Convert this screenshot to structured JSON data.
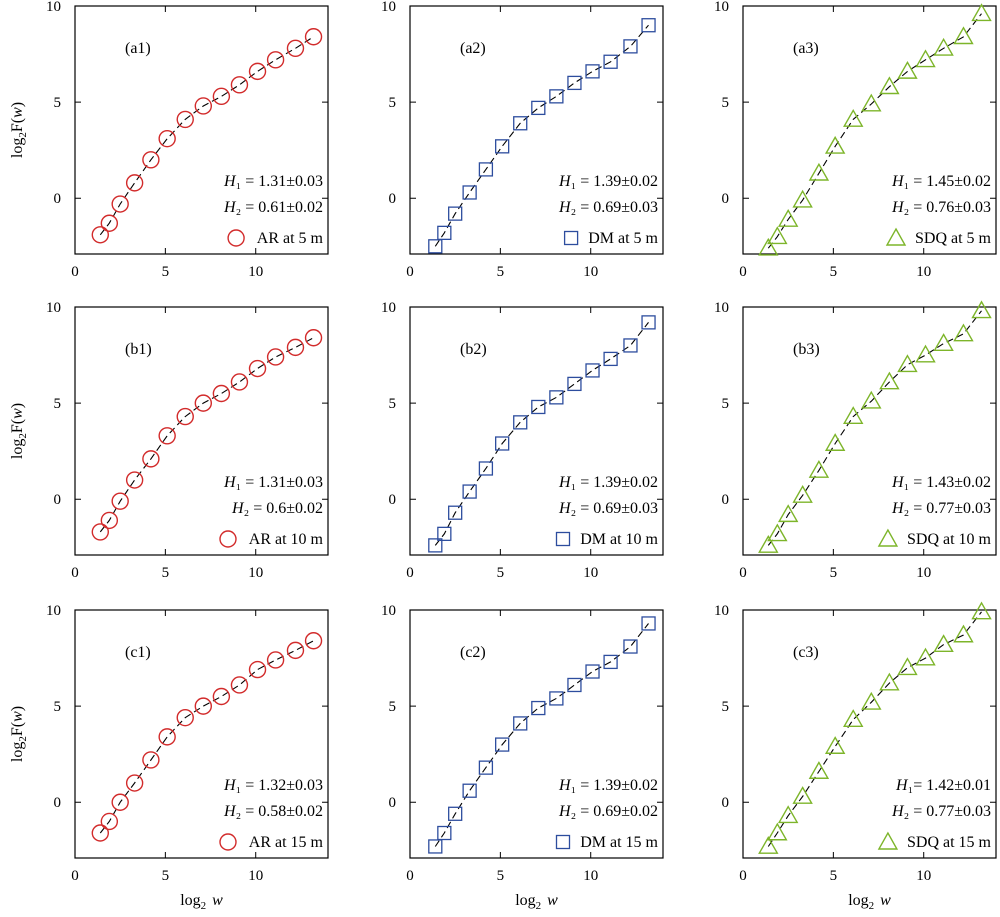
{
  "figure": {
    "xlabel": "log₂w",
    "ylabel": "log₂F(w)",
    "x_ticks": [
      0,
      5,
      10
    ],
    "y_ticks": [
      10,
      5,
      0
    ],
    "colors": {
      "AR": "#d22b2b",
      "DM": "#2d4d9e",
      "SDQ": "#7db52a",
      "fit": "#000000"
    },
    "marker_x": [
      1.4,
      1.9,
      2.5,
      3.3,
      4.2,
      5.1,
      6.1,
      7.1,
      8.1,
      9.1,
      10.1,
      11.1,
      12.2,
      13.2
    ]
  },
  "chart_data": [
    {
      "type": "scatter",
      "panel": "(a1)",
      "series": [
        {
          "name": "AR at 5 m",
          "marker": "circle",
          "values": [
            -1.9,
            -1.3,
            -0.3,
            0.8,
            2.0,
            3.1,
            4.1,
            4.8,
            5.3,
            5.9,
            6.6,
            7.2,
            7.8,
            8.4
          ]
        }
      ],
      "H1": "H₁ = 1.31±0.03",
      "H2": "H₂ = 0.61±0.02",
      "legend": "AR at 5 m",
      "xlim": [
        0,
        14
      ],
      "ylim": [
        -2.9,
        10
      ]
    },
    {
      "type": "scatter",
      "panel": "(a2)",
      "series": [
        {
          "name": "DM at 5 m",
          "marker": "square",
          "values": [
            -2.5,
            -1.8,
            -0.8,
            0.3,
            1.5,
            2.7,
            3.9,
            4.7,
            5.3,
            6.0,
            6.6,
            7.1,
            7.9,
            9.0
          ]
        }
      ],
      "H1": "H₁ = 1.39±0.02",
      "H2": "H₂ = 0.69±0.03",
      "legend": "DM at 5 m",
      "xlim": [
        0,
        14
      ],
      "ylim": [
        -2.9,
        10
      ]
    },
    {
      "type": "scatter",
      "panel": "(a3)",
      "series": [
        {
          "name": "SDQ at 5 m",
          "marker": "triangle",
          "values": [
            -2.6,
            -2.0,
            -1.1,
            -0.1,
            1.3,
            2.7,
            4.1,
            4.9,
            5.8,
            6.6,
            7.2,
            7.8,
            8.4,
            9.6
          ]
        }
      ],
      "H1": "H₁ = 1.45±0.02",
      "H2": "H₂ = 0.76±0.03",
      "legend": "SDQ at 5 m",
      "xlim": [
        0,
        14
      ],
      "ylim": [
        -2.9,
        10
      ]
    },
    {
      "type": "scatter",
      "panel": "(b1)",
      "series": [
        {
          "name": "AR at 10 m",
          "marker": "circle",
          "values": [
            -1.7,
            -1.1,
            -0.1,
            1.0,
            2.1,
            3.3,
            4.3,
            5.0,
            5.5,
            6.1,
            6.8,
            7.4,
            7.9,
            8.4
          ]
        }
      ],
      "H1": "H₁ = 1.31±0.03",
      "H2": "H₂ = 0.6±0.02",
      "legend": "AR at 10 m",
      "xlim": [
        0,
        14
      ],
      "ylim": [
        -2.9,
        10
      ]
    },
    {
      "type": "scatter",
      "panel": "(b2)",
      "series": [
        {
          "name": "DM at 10 m",
          "marker": "square",
          "values": [
            -2.4,
            -1.8,
            -0.7,
            0.4,
            1.6,
            2.9,
            4.0,
            4.8,
            5.3,
            6.0,
            6.7,
            7.3,
            8.0,
            9.2
          ]
        }
      ],
      "H1": "H₁ = 1.39±0.02",
      "H2": "H₂ = 0.69±0.03",
      "legend": "DM at 10 m",
      "xlim": [
        0,
        14
      ],
      "ylim": [
        -2.9,
        10
      ]
    },
    {
      "type": "scatter",
      "panel": "(b3)",
      "series": [
        {
          "name": "SDQ at 10 m",
          "marker": "triangle",
          "values": [
            -2.4,
            -1.8,
            -0.8,
            0.2,
            1.5,
            2.9,
            4.3,
            5.1,
            6.1,
            7.0,
            7.5,
            8.1,
            8.6,
            9.8
          ]
        }
      ],
      "H1": "H₁ = 1.43±0.02",
      "H2": "H₂ = 0.77±0.03",
      "legend": "SDQ at 10 m",
      "xlim": [
        0,
        14
      ],
      "ylim": [
        -2.9,
        10
      ]
    },
    {
      "type": "scatter",
      "panel": "(c1)",
      "series": [
        {
          "name": "AR at 15 m",
          "marker": "circle",
          "values": [
            -1.6,
            -1.0,
            0.0,
            1.0,
            2.2,
            3.4,
            4.4,
            5.0,
            5.5,
            6.1,
            6.9,
            7.4,
            7.9,
            8.4
          ]
        }
      ],
      "H1": "H₁ = 1.32±0.03",
      "H2": "H₂ = 0.58±0.02",
      "legend": "AR at 15 m",
      "xlim": [
        0,
        14
      ],
      "ylim": [
        -2.9,
        10
      ]
    },
    {
      "type": "scatter",
      "panel": "(c2)",
      "series": [
        {
          "name": "DM at 15 m",
          "marker": "square",
          "values": [
            -2.3,
            -1.6,
            -0.6,
            0.6,
            1.8,
            3.0,
            4.1,
            4.9,
            5.4,
            6.1,
            6.8,
            7.3,
            8.1,
            9.3
          ]
        }
      ],
      "H1": "H₁ = 1.39±0.02",
      "H2": "H₂ = 0.69±0.02",
      "legend": "DM at 15 m",
      "xlim": [
        0,
        14
      ],
      "ylim": [
        -2.9,
        10
      ]
    },
    {
      "type": "scatter",
      "panel": "(c3)",
      "series": [
        {
          "name": "SDQ at 15 m",
          "marker": "triangle",
          "values": [
            -2.3,
            -1.6,
            -0.7,
            0.3,
            1.6,
            2.9,
            4.3,
            5.2,
            6.2,
            7.0,
            7.5,
            8.2,
            8.7,
            9.9
          ]
        }
      ],
      "H1": "H₁= 1.42±0.01",
      "H2": "H₂ = 0.77±0.03",
      "legend": "SDQ at 15 m",
      "xlim": [
        0,
        14
      ],
      "ylim": [
        -2.9,
        10
      ]
    }
  ]
}
